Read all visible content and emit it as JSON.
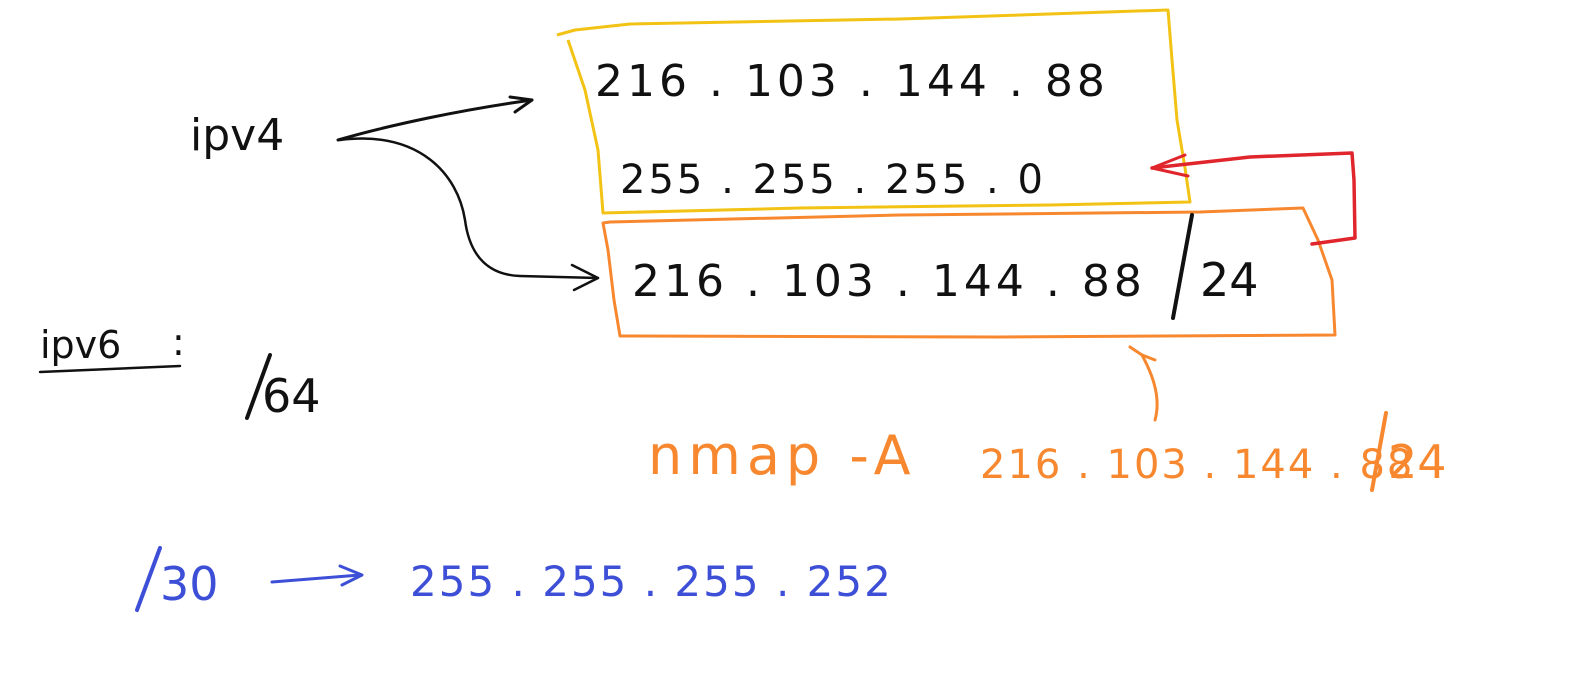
{
  "colors": {
    "ink": "#111111",
    "yellow_box": "#f2c315",
    "orange": "#f7882f",
    "red": "#e0262c",
    "blue": "#3d4fd6"
  },
  "ipv4": {
    "label": "ipv4",
    "address": "216 . 103 . 144 .  88",
    "subnet_mask": "255 . 255 . 255 .   0",
    "cidr_address": "216 . 103 . 144 . 88",
    "cidr_prefix": "24"
  },
  "ipv6": {
    "label": "ipv6",
    "colon": ":",
    "prefix": "64"
  },
  "nmap": {
    "command": "nmap -A",
    "target": "216 . 103 . 144 . 88",
    "prefix": "24"
  },
  "cidr_example": {
    "prefix": "30",
    "mask": "255 . 255 . 255 . 252"
  }
}
